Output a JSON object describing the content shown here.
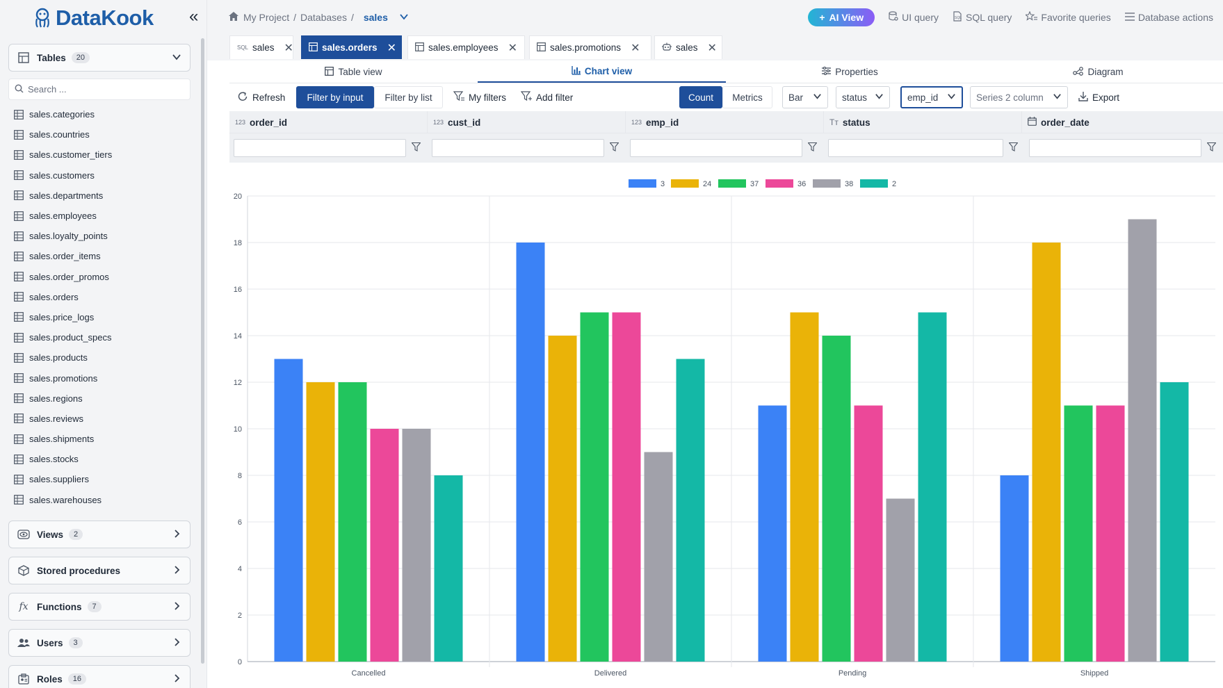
{
  "app": {
    "name": "DataKook"
  },
  "sidebar": {
    "tables": {
      "label": "Tables",
      "count": "20"
    },
    "search_placeholder": "Search ...",
    "table_items": [
      "sales.categories",
      "sales.countries",
      "sales.customer_tiers",
      "sales.customers",
      "sales.departments",
      "sales.employees",
      "sales.loyalty_points",
      "sales.order_items",
      "sales.order_promos",
      "sales.orders",
      "sales.price_logs",
      "sales.product_specs",
      "sales.products",
      "sales.promotions",
      "sales.regions",
      "sales.reviews",
      "sales.shipments",
      "sales.stocks",
      "sales.suppliers",
      "sales.warehouses"
    ],
    "views": {
      "label": "Views",
      "count": "2"
    },
    "stored_procedures": {
      "label": "Stored procedures"
    },
    "functions": {
      "label": "Functions",
      "count": "7"
    },
    "users": {
      "label": "Users",
      "count": "3"
    },
    "roles": {
      "label": "Roles",
      "count": "16"
    }
  },
  "breadcrumb": {
    "project": "My Project",
    "sep1": "/",
    "databases": "Databases",
    "sep2": "/",
    "current": "sales"
  },
  "top_actions": {
    "ai_view": "AI View",
    "ui_query": "UI query",
    "sql_query": "SQL query",
    "favorite_queries": "Favorite queries",
    "database_actions": "Database actions"
  },
  "tabs": [
    {
      "label": "sales",
      "icon": "sql-icon"
    },
    {
      "label": "sales.orders",
      "icon": "table-icon",
      "active": true
    },
    {
      "label": "sales.employees",
      "icon": "table-icon"
    },
    {
      "label": "sales.promotions",
      "icon": "table-icon"
    },
    {
      "label": "sales",
      "icon": "robot-icon"
    }
  ],
  "view_switch": {
    "table_view": "Table view",
    "chart_view": "Chart view",
    "properties": "Properties",
    "diagram": "Diagram"
  },
  "toolbar": {
    "refresh": "Refresh",
    "filter_by_input": "Filter by input",
    "filter_by_list": "Filter by list",
    "my_filters": "My filters",
    "add_filter": "Add filter",
    "count": "Count",
    "metrics": "Metrics",
    "chart_type": "Bar",
    "x_column": "status",
    "series_column": "emp_id",
    "series2_placeholder": "Series 2 column",
    "export": "Export"
  },
  "columns": [
    {
      "type": "123",
      "name": "order_id"
    },
    {
      "type": "123",
      "name": "cust_id"
    },
    {
      "type": "123",
      "name": "emp_id"
    },
    {
      "type": "Tт",
      "name": "status"
    },
    {
      "type": "cal",
      "name": "order_date"
    }
  ],
  "colors": {
    "accent": "#1e4e9a",
    "brand": "#1e5ea8"
  },
  "chart_data": {
    "type": "bar",
    "categories": [
      "Cancelled",
      "Delivered",
      "Pending",
      "Shipped"
    ],
    "series": [
      {
        "name": "3",
        "color": "#3b82f6",
        "values": [
          13,
          18,
          11,
          8
        ]
      },
      {
        "name": "24",
        "color": "#eab308",
        "values": [
          12,
          14,
          15,
          18
        ]
      },
      {
        "name": "37",
        "color": "#22c55e",
        "values": [
          12,
          15,
          14,
          11
        ]
      },
      {
        "name": "36",
        "color": "#ec4899",
        "values": [
          10,
          15,
          11,
          11
        ]
      },
      {
        "name": "38",
        "color": "#a1a1aa",
        "values": [
          10,
          9,
          7,
          19
        ]
      },
      {
        "name": "2",
        "color": "#14b8a6",
        "values": [
          8,
          13,
          15,
          12
        ]
      }
    ],
    "y_ticks": [
      "0",
      "2",
      "4",
      "6",
      "8",
      "10",
      "12",
      "14",
      "16",
      "18",
      "20"
    ],
    "ylim": [
      0,
      20
    ],
    "grid": true,
    "legend_position": "top-center"
  }
}
